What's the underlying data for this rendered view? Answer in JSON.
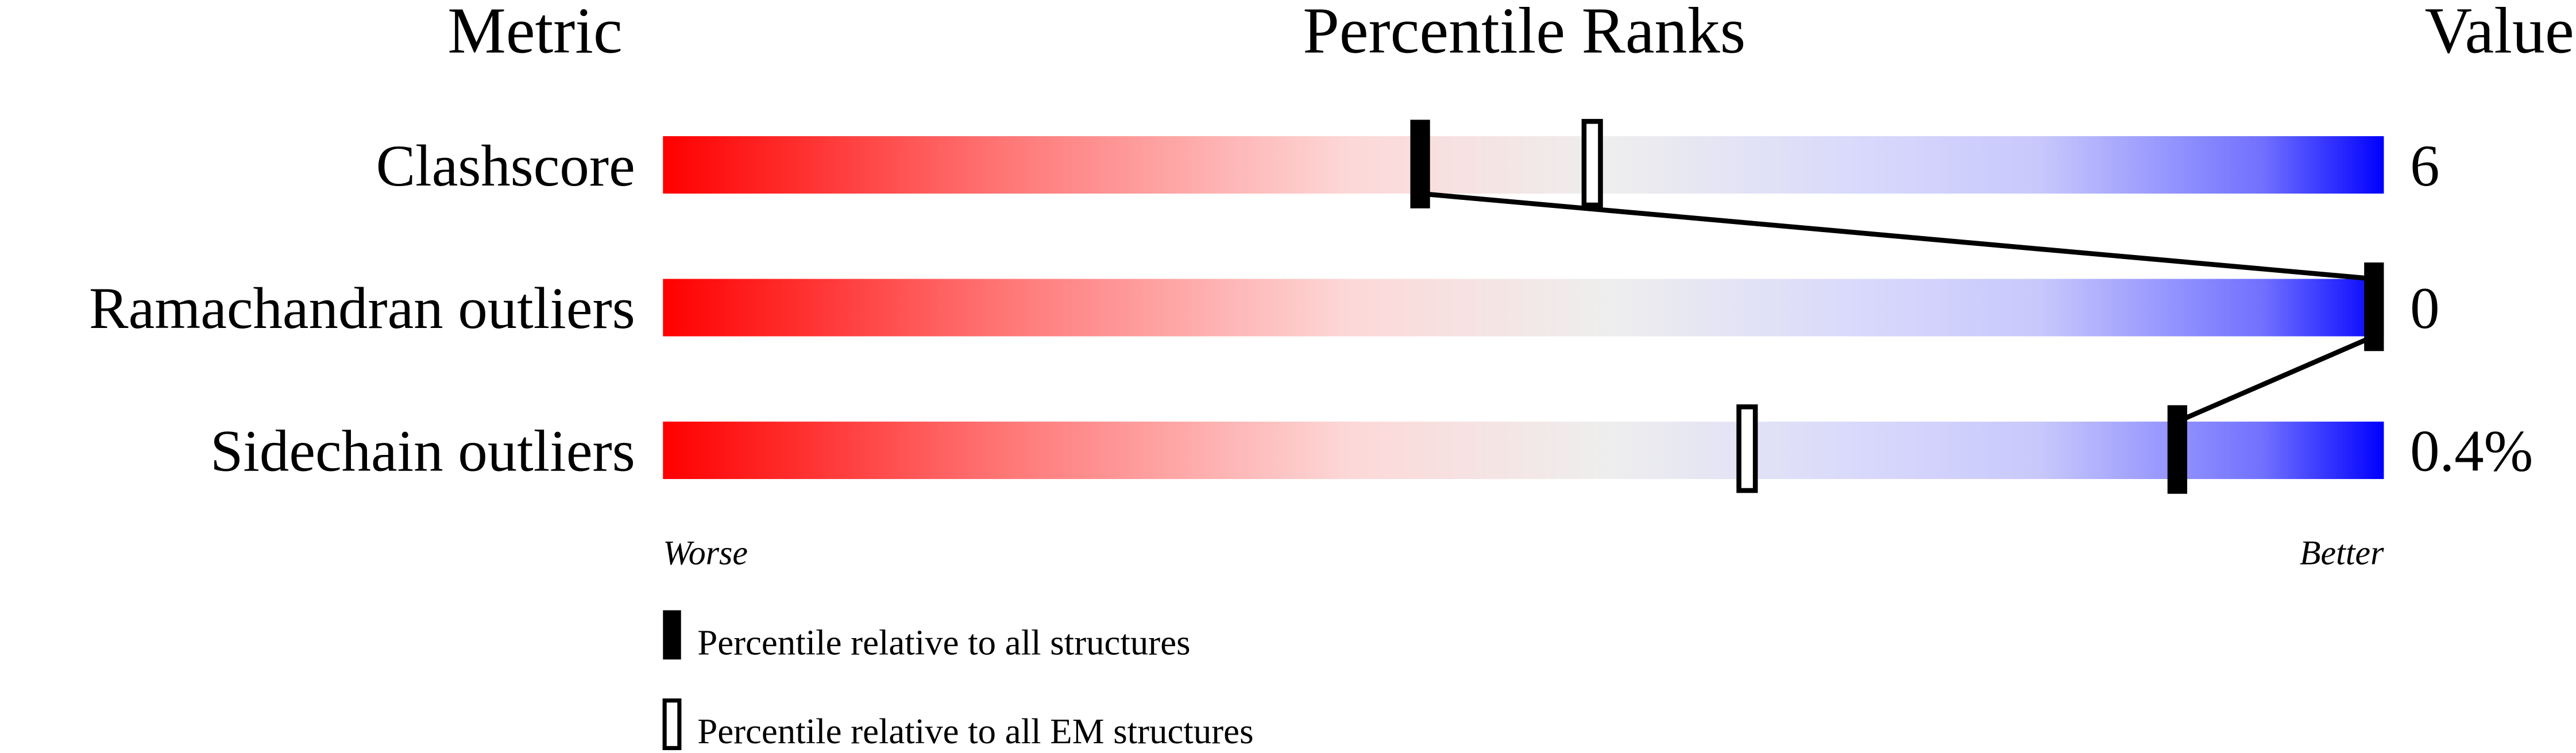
{
  "chart_data": {
    "type": "bar",
    "headers": {
      "metric": "Metric",
      "ranks": "Percentile Ranks",
      "value": "Value"
    },
    "xlim": [
      0,
      100
    ],
    "rows": [
      {
        "metric": "Clashscore",
        "value": "6",
        "percentile_all": 44,
        "percentile_em": 54
      },
      {
        "metric": "Ramachandran outliers",
        "value": "0",
        "percentile_all": 100,
        "percentile_em": null
      },
      {
        "metric": "Sidechain outliers",
        "value": "0.4%",
        "percentile_all": 88,
        "percentile_em": 63
      }
    ],
    "axis_labels": {
      "left": "Worse",
      "right": "Better"
    },
    "legend": [
      {
        "style": "filled",
        "label": "Percentile relative to all structures"
      },
      {
        "style": "open",
        "label": "Percentile relative to all EM structures"
      }
    ],
    "legend_placement": "bottom",
    "colors": {
      "worse": "#ff0000",
      "middle": "#eeeeee",
      "better_mid": "#d8d8ff",
      "better": "#0000ff",
      "marker": "#000000"
    }
  }
}
